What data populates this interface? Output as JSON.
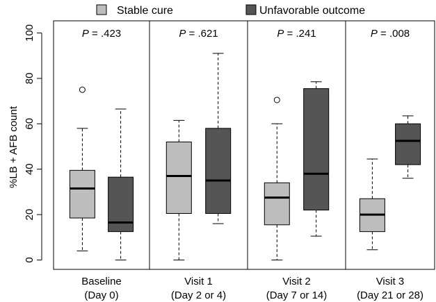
{
  "chart_data": {
    "type": "boxplot",
    "ylabel": "%LB + AFB count",
    "ylim": [
      0,
      100
    ],
    "yticks": [
      0,
      20,
      40,
      60,
      80,
      100
    ],
    "legend": [
      {
        "name": "Stable cure",
        "color": "#bdbdbd"
      },
      {
        "name": "Unfavorable outcome",
        "color": "#555555"
      }
    ],
    "legend_position": "top",
    "panels": [
      {
        "label_line1": "Baseline",
        "label_line2": "(Day 0)",
        "p_label": "P",
        "p_value": "= .423",
        "boxes": [
          {
            "series": "Stable cure",
            "whisker_low": 4,
            "q1": 18.5,
            "median": 31.5,
            "q3": 39.5,
            "whisker_high": 58,
            "outliers": [
              75
            ]
          },
          {
            "series": "Unfavorable outcome",
            "whisker_low": 0,
            "q1": 12.5,
            "median": 16.5,
            "q3": 36.5,
            "whisker_high": 66.5,
            "outliers": []
          }
        ]
      },
      {
        "label_line1": "Visit 1",
        "label_line2": "(Day 2 or 4)",
        "p_label": "P",
        "p_value": "= .621",
        "boxes": [
          {
            "series": "Stable cure",
            "whisker_low": 0,
            "q1": 20.5,
            "median": 37,
            "q3": 52,
            "whisker_high": 61.5,
            "outliers": []
          },
          {
            "series": "Unfavorable outcome",
            "whisker_low": 16,
            "q1": 20.5,
            "median": 35,
            "q3": 58,
            "whisker_high": 91,
            "outliers": []
          }
        ]
      },
      {
        "label_line1": "Visit 2",
        "label_line2": "(Day 7 or 14)",
        "p_label": "P",
        "p_value": "= .241",
        "boxes": [
          {
            "series": "Stable cure",
            "whisker_low": 0,
            "q1": 15.5,
            "median": 27.5,
            "q3": 34,
            "whisker_high": 60,
            "outliers": [
              70.5
            ]
          },
          {
            "series": "Unfavorable outcome",
            "whisker_low": 10.5,
            "q1": 22,
            "median": 38,
            "q3": 75.5,
            "whisker_high": 78.5,
            "outliers": []
          }
        ]
      },
      {
        "label_line1": "Visit 3",
        "label_line2": "(Day 21 or 28)",
        "p_label": "P",
        "p_value": "= .008",
        "boxes": [
          {
            "series": "Stable cure",
            "whisker_low": 4.5,
            "q1": 12.5,
            "median": 20,
            "q3": 27,
            "whisker_high": 44.5,
            "outliers": []
          },
          {
            "series": "Unfavorable outcome",
            "whisker_low": 36,
            "q1": 42,
            "median": 52.5,
            "q3": 60,
            "whisker_high": 63.5,
            "outliers": []
          }
        ]
      }
    ]
  }
}
